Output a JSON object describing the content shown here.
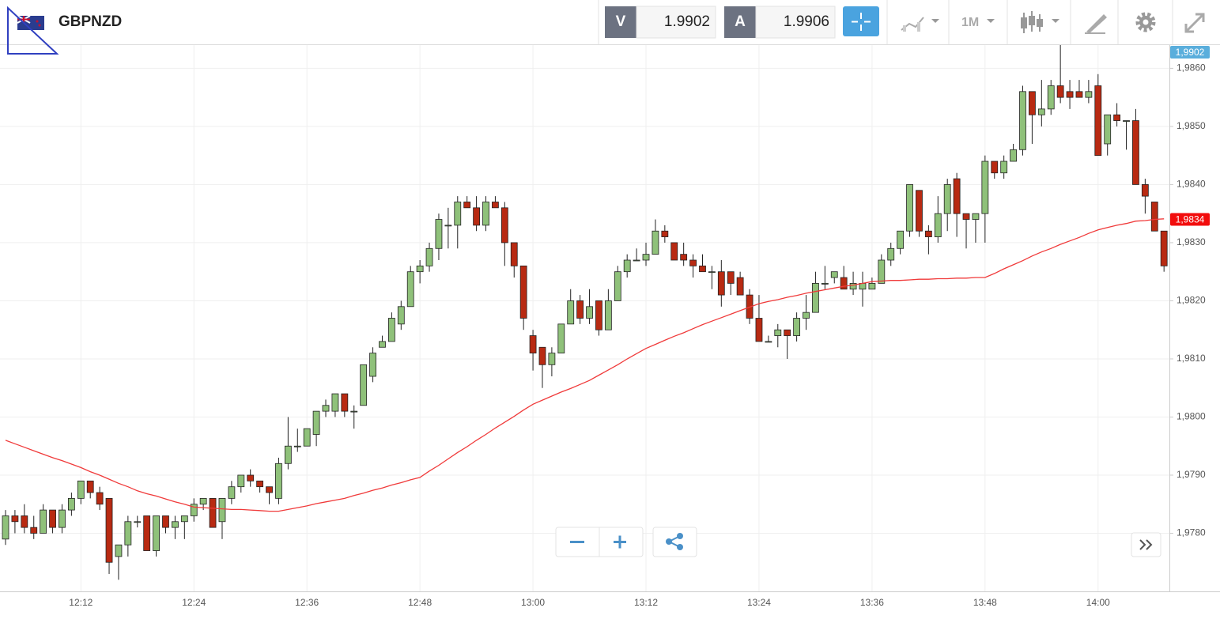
{
  "header": {
    "symbol": "GBPNZD",
    "sell_label": "V",
    "sell_price": "1.9902",
    "buy_label": "A",
    "buy_price": "1.9906",
    "timeframe": "1M"
  },
  "chart_data": {
    "type": "candlestick",
    "categories": [
      null,
      null,
      null,
      null,
      null,
      null,
      null,
      null,
      "12:12",
      null,
      null,
      null,
      null,
      null,
      null,
      null,
      null,
      null,
      null,
      null,
      "12:24",
      null,
      null,
      null,
      null,
      null,
      null,
      null,
      null,
      null,
      null,
      null,
      "12:36",
      null,
      null,
      null,
      null,
      null,
      null,
      null,
      null,
      null,
      null,
      null,
      "12:48",
      null,
      null,
      null,
      null,
      null,
      null,
      null,
      null,
      null,
      null,
      null,
      "13:00",
      null,
      null,
      null,
      null,
      null,
      null,
      null,
      null,
      null,
      null,
      null,
      "13:12",
      null,
      null,
      null,
      null,
      null,
      null,
      null,
      null,
      null,
      null,
      null,
      "13:24",
      null,
      null,
      null,
      null,
      null,
      null,
      null,
      null,
      null,
      null,
      null,
      "13:36",
      null,
      null,
      null,
      null,
      null,
      null,
      null,
      null,
      null,
      null,
      null,
      "13:48",
      null,
      null,
      null,
      null,
      null,
      null,
      null,
      null,
      null,
      null,
      null,
      "14:00",
      null,
      null,
      null,
      null,
      null,
      null,
      null
    ],
    "open": [
      1.9779,
      1.9783,
      1.9783,
      1.9781,
      1.978,
      1.9784,
      1.9781,
      1.9784,
      1.9786,
      1.9789,
      1.9787,
      1.9786,
      1.9776,
      1.9778,
      1.9782,
      1.9783,
      1.9777,
      1.9783,
      1.9781,
      1.9782,
      1.9783,
      1.9785,
      1.9786,
      1.9782,
      1.9786,
      1.9788,
      1.979,
      1.9789,
      1.9788,
      1.9786,
      1.9792,
      1.9795,
      1.9795,
      1.9797,
      1.9801,
      1.9801,
      1.9804,
      1.9801,
      1.9802,
      1.9807,
      1.9812,
      1.9813,
      1.9816,
      1.9819,
      1.9825,
      1.9826,
      1.9829,
      1.9833,
      1.9833,
      1.9837,
      1.9836,
      1.9833,
      1.9837,
      1.9836,
      1.983,
      1.9826,
      1.9814,
      1.9812,
      1.9809,
      1.9811,
      1.9816,
      1.982,
      1.9817,
      1.982,
      1.9815,
      1.982,
      1.9825,
      1.9827,
      1.9827,
      1.9828,
      1.9832,
      1.983,
      1.9828,
      1.9827,
      1.9826,
      1.9825,
      1.9825,
      1.9825,
      1.9824,
      1.9821,
      1.9817,
      1.9813,
      1.9814,
      1.9815,
      1.9814,
      1.9817,
      1.9818,
      1.9823,
      1.9824,
      1.9824,
      1.9822,
      1.9822,
      1.9822,
      1.9823,
      1.9827,
      1.9829,
      1.9832,
      1.9839,
      1.9832,
      1.9831,
      1.9835,
      1.9841,
      1.9835,
      1.9834,
      1.9835,
      1.9844,
      1.9842,
      1.9844,
      1.9846,
      1.9856,
      1.9852,
      1.9853,
      1.9857,
      1.9856,
      1.9856,
      1.9855,
      1.9857,
      1.9847,
      1.9852,
      1.9851,
      1.9851,
      1.984,
      1.9837,
      1.9832
    ],
    "high": [
      1.9784,
      1.9784,
      1.9785,
      1.9783,
      1.9785,
      1.9784,
      1.9785,
      1.9787,
      1.9789,
      1.9789,
      1.9788,
      1.9786,
      1.9778,
      1.9783,
      1.9783,
      1.9783,
      1.9783,
      1.9783,
      1.9783,
      1.9783,
      1.9786,
      1.9786,
      1.9786,
      1.9786,
      1.9789,
      1.979,
      1.9791,
      1.9789,
      1.9788,
      1.9793,
      1.98,
      1.9798,
      1.9798,
      1.9801,
      1.9803,
      1.9804,
      1.9804,
      1.9802,
      1.9809,
      1.9812,
      1.9814,
      1.9818,
      1.982,
      1.9826,
      1.9827,
      1.983,
      1.9835,
      1.9836,
      1.9838,
      1.9838,
      1.9838,
      1.9838,
      1.9838,
      1.9837,
      1.983,
      1.9826,
      1.9815,
      1.9812,
      1.9812,
      1.9816,
      1.9822,
      1.9821,
      1.9822,
      1.982,
      1.9822,
      1.9826,
      1.9828,
      1.9829,
      1.983,
      1.9834,
      1.9833,
      1.983,
      1.983,
      1.9828,
      1.9828,
      1.9826,
      1.9827,
      1.9825,
      1.9825,
      1.9822,
      1.9821,
      1.9814,
      1.9816,
      1.9815,
      1.9818,
      1.9821,
      1.9825,
      1.9826,
      1.9825,
      1.9826,
      1.9825,
      1.9825,
      1.9824,
      1.9828,
      1.983,
      1.9832,
      1.984,
      1.9839,
      1.9833,
      1.9838,
      1.9841,
      1.9842,
      1.9835,
      1.9835,
      1.9845,
      1.9844,
      1.9845,
      1.9847,
      1.9857,
      1.9856,
      1.9858,
      1.9858,
      1.9864,
      1.9858,
      1.9858,
      1.9858,
      1.9859,
      1.9852,
      1.9854,
      1.9851,
      1.9853,
      1.9841,
      1.9837,
      1.9832
    ],
    "low": [
      1.9778,
      1.978,
      1.978,
      1.9779,
      1.978,
      1.978,
      1.978,
      1.9783,
      1.9785,
      1.9786,
      1.9784,
      1.9773,
      1.9772,
      1.9776,
      1.9781,
      1.9777,
      1.9776,
      1.978,
      1.9779,
      1.9779,
      1.9782,
      1.9784,
      1.9781,
      1.9779,
      1.9785,
      1.9787,
      1.9788,
      1.9787,
      1.9785,
      1.9785,
      1.9791,
      1.9794,
      1.9795,
      1.9795,
      1.98,
      1.98,
      1.98,
      1.9798,
      1.9802,
      1.9806,
      1.9812,
      1.9813,
      1.9815,
      1.9819,
      1.9823,
      1.9825,
      1.9827,
      1.9829,
      1.9829,
      1.9836,
      1.9832,
      1.9832,
      1.9836,
      1.9826,
      1.9824,
      1.9815,
      1.9808,
      1.9805,
      1.9807,
      1.9811,
      1.9816,
      1.9816,
      1.9816,
      1.9814,
      1.9815,
      1.982,
      1.9824,
      1.9827,
      1.9826,
      1.9828,
      1.983,
      1.9827,
      1.9826,
      1.9824,
      1.9825,
      1.9822,
      1.9819,
      1.9821,
      1.9821,
      1.9816,
      1.9813,
      1.9813,
      1.9812,
      1.981,
      1.9813,
      1.9815,
      1.9818,
      1.9822,
      1.9823,
      1.9822,
      1.9821,
      1.9819,
      1.9822,
      1.9823,
      1.9826,
      1.9828,
      1.9831,
      1.9831,
      1.9828,
      1.983,
      1.9832,
      1.9831,
      1.9829,
      1.983,
      1.983,
      1.9841,
      1.9841,
      1.9844,
      1.9845,
      1.9847,
      1.985,
      1.9852,
      1.9854,
      1.9853,
      1.9855,
      1.9854,
      1.9845,
      1.9845,
      1.985,
      1.9846,
      1.984,
      1.9835,
      1.9832,
      1.9825
    ],
    "close": [
      1.9783,
      1.9782,
      1.9781,
      1.978,
      1.9784,
      1.9781,
      1.9784,
      1.9786,
      1.9789,
      1.9787,
      1.9785,
      1.9775,
      1.9778,
      1.9782,
      1.9782,
      1.9777,
      1.9783,
      1.9781,
      1.9782,
      1.9783,
      1.9785,
      1.9786,
      1.9781,
      1.9786,
      1.9788,
      1.979,
      1.9789,
      1.9788,
      1.9787,
      1.9792,
      1.9795,
      1.9795,
      1.9798,
      1.9801,
      1.9802,
      1.9804,
      1.9801,
      1.9801,
      1.9809,
      1.9811,
      1.9813,
      1.9817,
      1.9819,
      1.9825,
      1.9826,
      1.9829,
      1.9834,
      1.9833,
      1.9837,
      1.9836,
      1.9833,
      1.9837,
      1.9836,
      1.983,
      1.9826,
      1.9817,
      1.9811,
      1.9809,
      1.9811,
      1.9816,
      1.982,
      1.9817,
      1.9819,
      1.9815,
      1.982,
      1.9825,
      1.9827,
      1.9827,
      1.9828,
      1.9832,
      1.9831,
      1.9827,
      1.9827,
      1.9826,
      1.9825,
      1.9825,
      1.9821,
      1.9823,
      1.9821,
      1.9817,
      1.9813,
      1.9813,
      1.9815,
      1.9814,
      1.9817,
      1.9818,
      1.9823,
      1.9823,
      1.9825,
      1.9822,
      1.9823,
      1.9823,
      1.9823,
      1.9827,
      1.9829,
      1.9832,
      1.984,
      1.9832,
      1.9831,
      1.9835,
      1.984,
      1.9835,
      1.9834,
      1.9835,
      1.9844,
      1.9842,
      1.9844,
      1.9846,
      1.9856,
      1.9852,
      1.9853,
      1.9857,
      1.9855,
      1.9855,
      1.9855,
      1.9856,
      1.9845,
      1.9852,
      1.9851,
      1.9851,
      1.984,
      1.9838,
      1.9832,
      1.9826
    ],
    "up_color": "#8fc17a",
    "down_color": "#b82a12",
    "moving_average": {
      "color": "#f03a3a",
      "values": [
        1.9796,
        1.97954,
        1.97948,
        1.97942,
        1.97936,
        1.9793,
        1.97925,
        1.97919,
        1.97913,
        1.97906,
        1.979,
        1.97893,
        1.97886,
        1.9788,
        1.97873,
        1.97868,
        1.97864,
        1.97859,
        1.97854,
        1.9785,
        1.97845,
        1.97844,
        1.97843,
        1.97842,
        1.97841,
        1.97841,
        1.9784,
        1.97839,
        1.97838,
        1.97838,
        1.97841,
        1.97844,
        1.97847,
        1.97851,
        1.97854,
        1.97857,
        1.9786,
        1.97865,
        1.97869,
        1.97874,
        1.97878,
        1.97883,
        1.97887,
        1.97892,
        1.97896,
        1.97907,
        1.97917,
        1.97928,
        1.97939,
        1.97949,
        1.9796,
        1.9797,
        1.97981,
        1.97991,
        1.98001,
        1.98012,
        1.98022,
        1.98029,
        1.98036,
        1.98043,
        1.98049,
        1.98056,
        1.98063,
        1.98072,
        1.98081,
        1.9809,
        1.981,
        1.98109,
        1.98118,
        1.98125,
        1.98132,
        1.98139,
        1.98145,
        1.98152,
        1.98159,
        1.98165,
        1.98171,
        1.98177,
        1.98183,
        1.98189,
        1.98195,
        1.98199,
        1.98202,
        1.98206,
        1.98209,
        1.98213,
        1.98216,
        1.98219,
        1.98222,
        1.98225,
        1.98227,
        1.9823,
        1.98233,
        1.98234,
        1.98235,
        1.98235,
        1.98236,
        1.98237,
        1.98237,
        1.98238,
        1.98238,
        1.98239,
        1.98239,
        1.9824,
        1.9824,
        1.98247,
        1.98255,
        1.98262,
        1.98269,
        1.98277,
        1.98284,
        1.9829,
        1.98297,
        1.98303,
        1.98309,
        1.98316,
        1.98322,
        1.98326,
        1.9833,
        1.98333,
        1.98337,
        1.98338,
        1.9834,
        1.98341
      ]
    },
    "ylim": [
      1.977,
      1.9864
    ],
    "yticks": [
      {
        "value": 1.978,
        "label": "1,9780"
      },
      {
        "value": 1.979,
        "label": "1,9790"
      },
      {
        "value": 1.98,
        "label": "1,9800"
      },
      {
        "value": 1.981,
        "label": "1,9810"
      },
      {
        "value": 1.982,
        "label": "1,9820"
      },
      {
        "value": 1.983,
        "label": "1,9830"
      },
      {
        "value": 1.984,
        "label": "1,9840"
      },
      {
        "value": 1.985,
        "label": "1,9850"
      },
      {
        "value": 1.986,
        "label": "1,9860"
      }
    ],
    "grid": true,
    "price_tags": [
      {
        "label": "1,9902",
        "color": "#5aaedc"
      },
      {
        "value": 1.9834,
        "label": "1,9834",
        "color": "#f20d0d"
      }
    ]
  }
}
